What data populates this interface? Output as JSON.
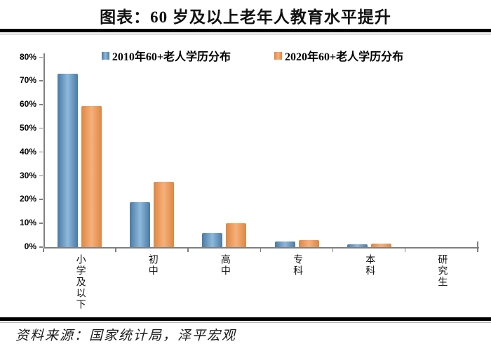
{
  "header": {
    "title": "图表：60 岁及以上老年人教育水平提升"
  },
  "chart_data": {
    "type": "bar",
    "title": "图表：60 岁及以上老年人教育水平提升",
    "categories": [
      "小学及以下",
      "初中",
      "高中",
      "专科",
      "本科",
      "研究生"
    ],
    "series": [
      {
        "name": "2010年60+老人学历分布",
        "values": [
          73,
          19,
          6,
          2.4,
          1.3,
          0.1
        ],
        "color_dark": "#4a7aa4",
        "color_light": "#8db9dc"
      },
      {
        "name": "2020年60+老人学历分布",
        "values": [
          59.5,
          27.5,
          10,
          3.0,
          1.5,
          0.1
        ],
        "color_dark": "#dd8743",
        "color_light": "#f6b07a"
      }
    ],
    "xlabel": "",
    "ylabel": "",
    "ylim": [
      0,
      80
    ],
    "ytick_step": 10,
    "yticks": [
      "0%",
      "10%",
      "20%",
      "30%",
      "40%",
      "50%",
      "60%",
      "70%",
      "80%"
    ],
    "grid": false,
    "legend_position": "top",
    "axis_color": "#7f7f7f"
  },
  "footer": {
    "source": "资料来源：国家统计局，泽平宏观"
  }
}
